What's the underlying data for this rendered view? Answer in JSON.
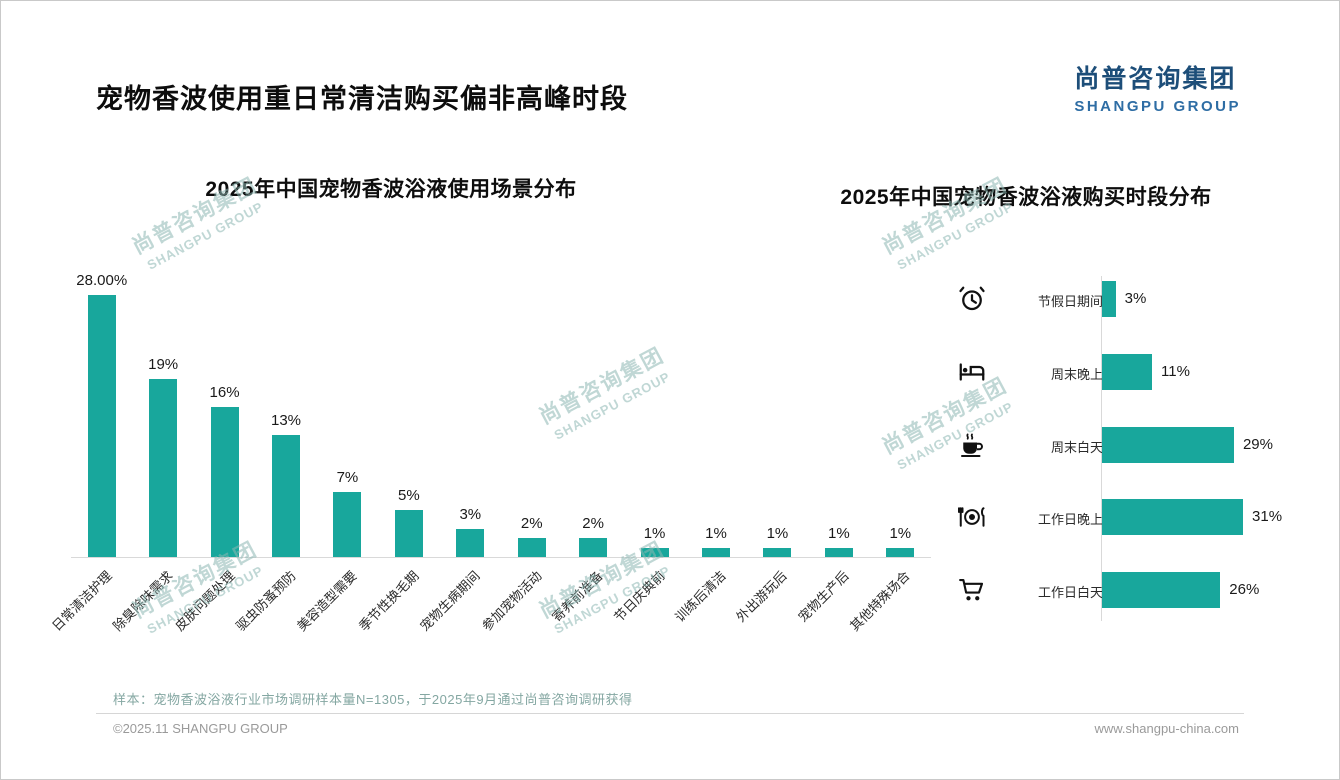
{
  "page": {
    "title": "宠物香波使用重日常清洁购买偏非高峰时段",
    "logo": {
      "cn": "尚普咨询集团",
      "en": "SHANGPU GROUP"
    },
    "watermark_cn": "尚普咨询集团",
    "watermark_en": "SHANGPU GROUP",
    "footer": {
      "note": "样本：宠物香波浴液行业市场调研样本量N=1305，于2025年9月通过尚普咨询调研获得",
      "copyright": "©2025.11 SHANGPU GROUP",
      "website": "www.shangpu-china.com"
    },
    "colors": {
      "accent": "#18a79c",
      "logo_blue": "#1d4e79",
      "logo_light_blue": "#2e6da4",
      "axis_gray": "#d9d9d9",
      "note_teal": "#84a7a2"
    }
  },
  "chart_data": [
    {
      "type": "bar",
      "orientation": "vertical",
      "title": "2025年中国宠物香波浴液使用场景分布",
      "categories": [
        "日常清洁护理",
        "除臭除味需求",
        "皮肤问题处理",
        "驱虫防蚤预防",
        "美容造型需要",
        "季节性换毛期",
        "宠物生病期间",
        "参加宠物活动",
        "寄养前准备",
        "节日庆典前",
        "训练后清洁",
        "外出游玩后",
        "宠物生产后",
        "其他特殊场合"
      ],
      "values": [
        28,
        19,
        16,
        13,
        7,
        5,
        3,
        2,
        2,
        1,
        1,
        1,
        1,
        1
      ],
      "labels": [
        "28.00%",
        "19%",
        "16%",
        "13%",
        "7%",
        "5%",
        "3%",
        "2%",
        "2%",
        "1%",
        "1%",
        "1%",
        "1%",
        "1%"
      ],
      "xlabel": "",
      "ylabel": "",
      "ylim": [
        0,
        28
      ],
      "grid": false,
      "legend": false
    },
    {
      "type": "bar",
      "orientation": "horizontal",
      "title": "2025年中国宠物香波浴液购买时段分布",
      "categories": [
        "节假日期间",
        "周末晚上",
        "周末白天",
        "工作日晚上",
        "工作日白天"
      ],
      "values": [
        3,
        11,
        29,
        31,
        26
      ],
      "labels": [
        "3%",
        "11%",
        "29%",
        "31%",
        "26%"
      ],
      "icons": [
        "alarm-clock-icon",
        "bed-icon",
        "coffee-icon",
        "dining-icon",
        "cart-icon"
      ],
      "xlabel": "",
      "ylabel": "",
      "xlim": [
        0,
        31
      ],
      "grid": false,
      "legend": false
    }
  ]
}
